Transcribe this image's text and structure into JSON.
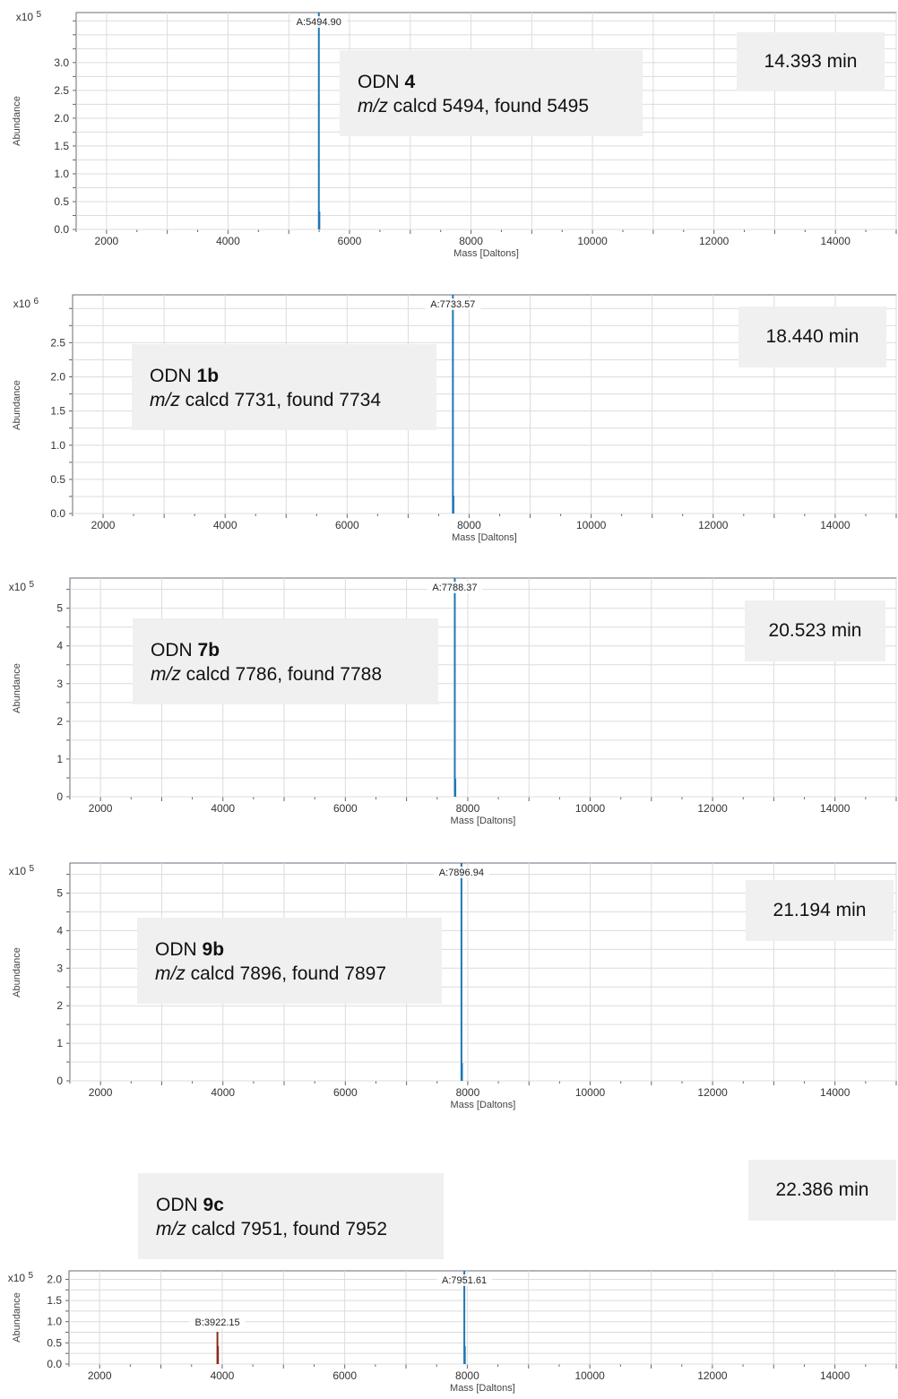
{
  "chart_data": [
    {
      "type": "line",
      "xlabel": "Mass [Daltons]",
      "ylabel": "Abundance",
      "y_multiplier": "x10 5",
      "xlim": [
        1500,
        15000
      ],
      "ylim": [
        0,
        3.9
      ],
      "xticks": [
        "2000",
        "4000",
        "6000",
        "8000",
        "10000",
        "12000",
        "14000"
      ],
      "yticks": [
        "0.0",
        "0.5",
        "1.0",
        "1.5",
        "2.0",
        "2.5",
        "3.0"
      ],
      "annotation": {
        "compound": "4",
        "calc_text": "calcd 5494, found 5495"
      },
      "retention_time": "14.393 min",
      "peaks": [
        {
          "label": "A:5494.90",
          "x": 5494.9,
          "y": 3.9,
          "color": "#1f77b4"
        }
      ]
    },
    {
      "type": "line",
      "xlabel": "Mass [Daltons]",
      "ylabel": "Abundance",
      "y_multiplier": "x10 6",
      "xlim": [
        1500,
        15000
      ],
      "ylim": [
        0,
        3.2
      ],
      "xticks": [
        "2000",
        "4000",
        "6000",
        "8000",
        "10000",
        "12000",
        "14000"
      ],
      "yticks": [
        "0.0",
        "0.5",
        "1.0",
        "1.5",
        "2.0",
        "2.5"
      ],
      "annotation": {
        "compound": "1b",
        "calc_text": "calcd 7731, found 7734"
      },
      "retention_time": "18.440 min",
      "peaks": [
        {
          "label": "A:7733.57",
          "x": 7733.57,
          "y": 3.2,
          "color": "#1f77b4"
        }
      ]
    },
    {
      "type": "line",
      "xlabel": "Mass [Daltons]",
      "ylabel": "Abundance",
      "y_multiplier": "x10 5",
      "xlim": [
        1500,
        15000
      ],
      "ylim": [
        0,
        5.8
      ],
      "xticks": [
        "2000",
        "4000",
        "6000",
        "8000",
        "10000",
        "12000",
        "14000"
      ],
      "yticks": [
        "0",
        "1",
        "2",
        "3",
        "4",
        "5"
      ],
      "annotation": {
        "compound": "7b",
        "calc_text": "calcd 7786, found 7788"
      },
      "retention_time": "20.523 min",
      "peaks": [
        {
          "label": "A:7788.37",
          "x": 7788.37,
          "y": 5.8,
          "color": "#1f77b4"
        }
      ]
    },
    {
      "type": "line",
      "xlabel": "Mass [Daltons]",
      "ylabel": "Abundance",
      "y_multiplier": "x10 5",
      "xlim": [
        1500,
        15000
      ],
      "ylim": [
        0,
        5.8
      ],
      "xticks": [
        "2000",
        "4000",
        "6000",
        "8000",
        "10000",
        "12000",
        "14000"
      ],
      "yticks": [
        "0",
        "1",
        "2",
        "3",
        "4",
        "5"
      ],
      "annotation": {
        "compound": "9b",
        "calc_text": "calcd 7896, found 7897"
      },
      "retention_time": "21.194 min",
      "peaks": [
        {
          "label": "A:7896.94",
          "x": 7896.94,
          "y": 5.8,
          "color": "#1f77b4"
        }
      ]
    },
    {
      "type": "line",
      "xlabel": "Mass [Daltons]",
      "ylabel": "Abundance",
      "y_multiplier": "x10 5",
      "xlim": [
        1500,
        15000
      ],
      "ylim": [
        0,
        2.2
      ],
      "xticks": [
        "2000",
        "4000",
        "6000",
        "8000",
        "10000",
        "12000",
        "14000"
      ],
      "yticks": [
        "0.0",
        "0.5",
        "1.0",
        "1.5",
        "2.0"
      ],
      "annotation": {
        "compound": "9c",
        "calc_text": "calcd 7951, found 7952"
      },
      "retention_time": "22.386 min",
      "peaks": [
        {
          "label": "A:7951.61",
          "x": 7951.61,
          "y": 2.2,
          "color": "#1f77b4"
        },
        {
          "label": "B:3922.15",
          "x": 3922.15,
          "y": 0.76,
          "color": "#8b2a1a"
        }
      ]
    }
  ],
  "common": {
    "odn_prefix": "ODN",
    "mz_label": "m/z"
  }
}
